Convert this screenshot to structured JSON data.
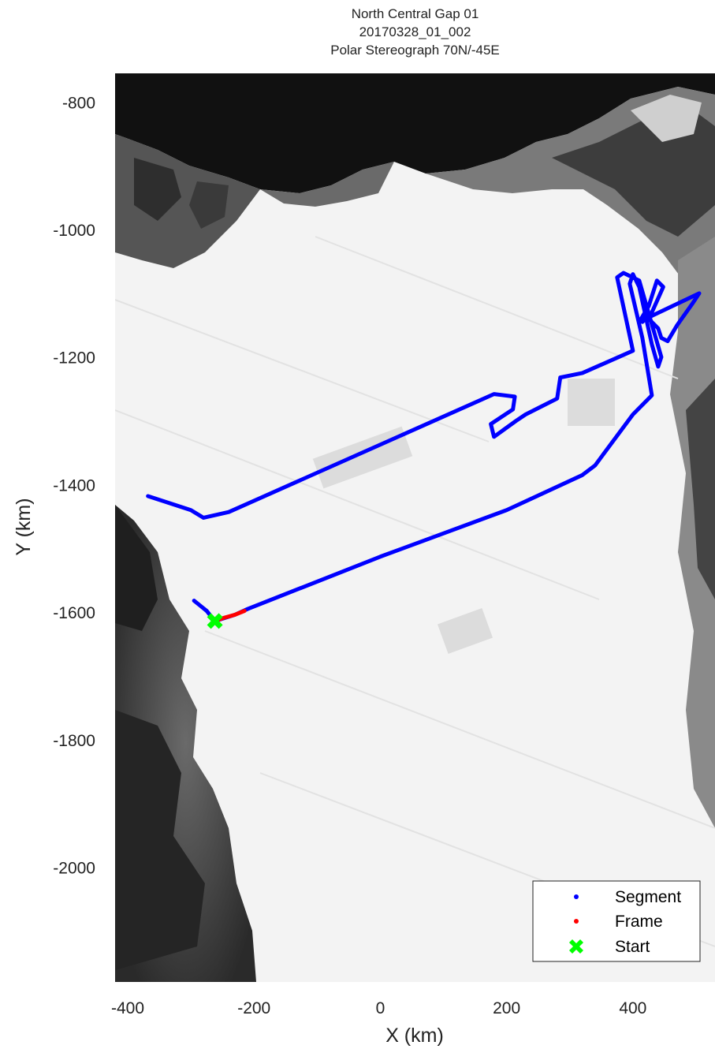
{
  "title": {
    "line1": "North Central Gap 01",
    "line2": "20170328_01_002",
    "line3": "Polar Stereograph 70N/-45E"
  },
  "axes": {
    "xlabel": "X (km)",
    "ylabel": "Y (km)",
    "xlim": [
      -420,
      530
    ],
    "ylim": [
      -2180,
      -755
    ],
    "xticks": [
      -400,
      -200,
      0,
      200,
      400
    ],
    "yticks": [
      -800,
      -1000,
      -1200,
      -1400,
      -1600,
      -1800,
      -2000
    ]
  },
  "legend": {
    "placement": "bottom-right",
    "items": [
      {
        "label": "Segment",
        "color": "#0000ff",
        "marker": "dot"
      },
      {
        "label": "Frame",
        "color": "#ff0000",
        "marker": "dot"
      },
      {
        "label": "Start",
        "color": "#00ff00",
        "marker": "x-cross"
      }
    ]
  },
  "chart_data": {
    "type": "map-track",
    "background": "grayscale satellite mosaic of Greenland ice sheet",
    "segment": {
      "name": "Segment",
      "color": "#0000ff",
      "points": [
        [
          -295,
          -1582
        ],
        [
          -275,
          -1598
        ],
        [
          -262,
          -1614
        ],
        [
          -230,
          -1604
        ],
        [
          -210,
          -1595
        ],
        [
          0,
          -1513
        ],
        [
          200,
          -1440
        ],
        [
          320,
          -1385
        ],
        [
          340,
          -1370
        ],
        [
          400,
          -1290
        ],
        [
          430,
          -1260
        ],
        [
          415,
          -1170
        ],
        [
          395,
          -1085
        ],
        [
          400,
          -1070
        ],
        [
          410,
          -1090
        ],
        [
          430,
          -1180
        ],
        [
          440,
          -1215
        ],
        [
          445,
          -1200
        ],
        [
          410,
          -1080
        ],
        [
          385,
          -1068
        ],
        [
          375,
          -1075
        ],
        [
          400,
          -1190
        ],
        [
          320,
          -1225
        ],
        [
          285,
          -1232
        ],
        [
          280,
          -1265
        ],
        [
          260,
          -1275
        ],
        [
          230,
          -1290
        ],
        [
          215,
          -1300
        ],
        [
          180,
          -1325
        ],
        [
          175,
          -1305
        ],
        [
          210,
          -1282
        ],
        [
          213,
          -1262
        ],
        [
          180,
          -1258
        ],
        [
          -240,
          -1443
        ],
        [
          -280,
          -1452
        ],
        [
          -300,
          -1440
        ],
        [
          -368,
          -1418
        ]
      ],
      "loop": [
        [
          410,
          -1145
        ],
        [
          425,
          -1120
        ],
        [
          438,
          -1080
        ],
        [
          448,
          -1090
        ],
        [
          430,
          -1130
        ],
        [
          415,
          -1145
        ]
      ],
      "loop2": [
        [
          420,
          -1140
        ],
        [
          505,
          -1100
        ],
        [
          495,
          -1115
        ],
        [
          470,
          -1150
        ],
        [
          455,
          -1175
        ],
        [
          445,
          -1170
        ],
        [
          440,
          -1155
        ],
        [
          425,
          -1140
        ]
      ]
    },
    "frame": {
      "name": "Frame",
      "color": "#ff0000",
      "points": [
        [
          -262,
          -1614
        ],
        [
          -248,
          -1609
        ],
        [
          -230,
          -1604
        ],
        [
          -215,
          -1598
        ]
      ]
    },
    "start": {
      "name": "Start",
      "color": "#00ff00",
      "x": -262,
      "y": -1614
    }
  }
}
